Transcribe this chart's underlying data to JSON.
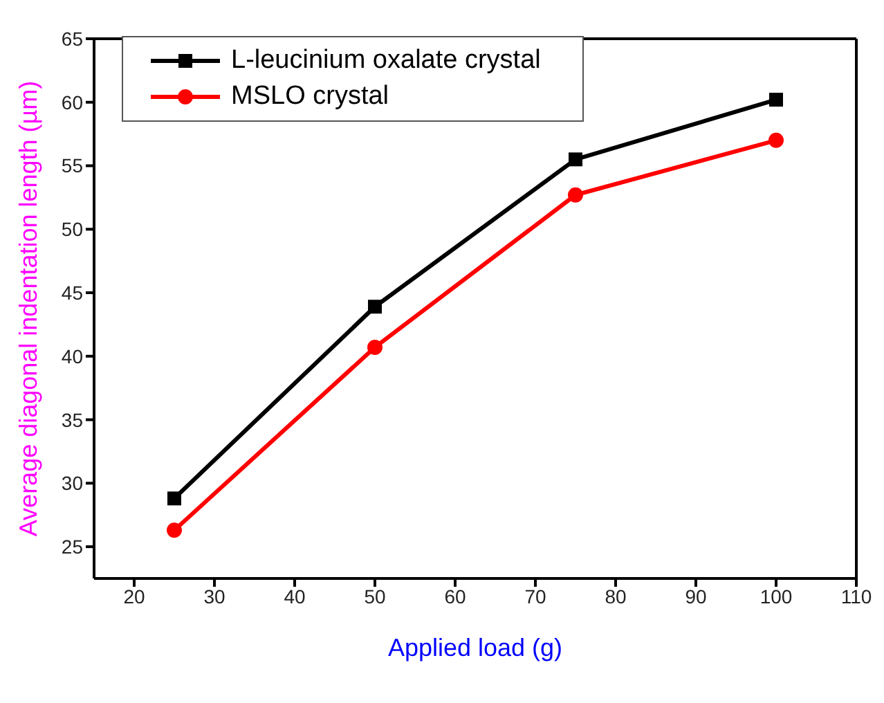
{
  "chart_data": {
    "type": "line",
    "xlabel": "Applied load (g)",
    "ylabel": "Average diagonal indentation length (µm)",
    "x": [
      25,
      50,
      75,
      100
    ],
    "series": [
      {
        "name": "L-leucinium oxalate crystal",
        "color": "#000000",
        "marker": "square",
        "values": [
          28.8,
          43.9,
          55.5,
          60.2
        ]
      },
      {
        "name": "MSLO crystal",
        "color": "#ff0000",
        "marker": "circle",
        "values": [
          26.3,
          40.7,
          52.7,
          57.0
        ]
      }
    ],
    "xlim": [
      15,
      110
    ],
    "xticks": [
      20,
      30,
      40,
      50,
      60,
      70,
      80,
      90,
      100,
      110
    ],
    "ylim": [
      22.5,
      65
    ],
    "yticks": [
      25,
      30,
      35,
      40,
      45,
      50,
      55,
      60,
      65
    ],
    "grid": false,
    "legend": "top left",
    "line_style": "solid"
  }
}
